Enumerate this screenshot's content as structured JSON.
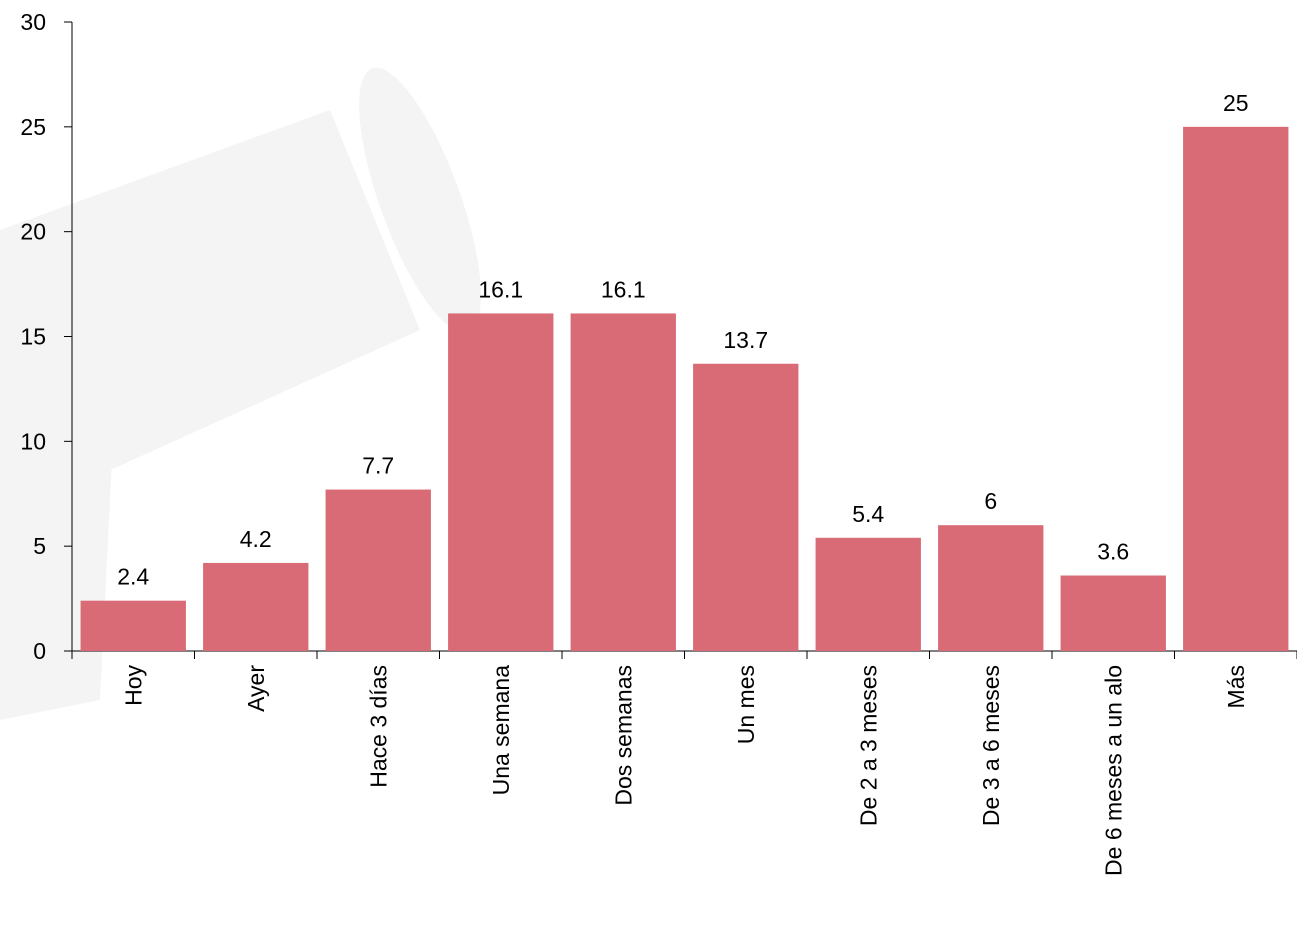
{
  "chart_data": {
    "type": "bar",
    "categories": [
      "Hoy",
      "Ayer",
      "Hace 3 días",
      "Una semana",
      "Dos semanas",
      "Un mes",
      "De 2 a 3 meses",
      "De 3 a 6 meses",
      "De 6 meses a un alo",
      "Más"
    ],
    "values": [
      2.4,
      4.2,
      7.7,
      16.1,
      16.1,
      13.7,
      5.4,
      6,
      3.6,
      25
    ],
    "color": "#d96b77",
    "ylim": [
      0,
      30
    ],
    "yticks": [
      0,
      5,
      10,
      15,
      20,
      25,
      30
    ],
    "grid": false
  }
}
